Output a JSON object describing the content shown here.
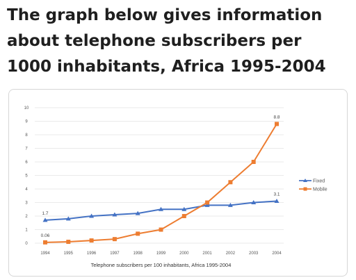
{
  "heading": "The graph below gives information about telephone subscribers per 1000 inhabitants, Africa 1995-2004",
  "chart_data": {
    "type": "line",
    "categories": [
      "1994",
      "1995",
      "1996",
      "1997",
      "1998",
      "1999",
      "2000",
      "2001",
      "2002",
      "2003",
      "2004"
    ],
    "series": [
      {
        "name": "Fixed",
        "color": "#4472c4",
        "marker": "triangle",
        "values": [
          1.7,
          1.8,
          2.0,
          2.1,
          2.2,
          2.5,
          2.5,
          2.8,
          2.8,
          3.0,
          3.1
        ]
      },
      {
        "name": "Mobile",
        "color": "#ed7d31",
        "marker": "square",
        "values": [
          0.06,
          0.1,
          0.2,
          0.3,
          0.7,
          1.0,
          2.0,
          3.0,
          4.5,
          6.0,
          8.8
        ]
      }
    ],
    "y_ticks": [
      "0",
      "1",
      "2",
      "3",
      "4",
      "5",
      "6",
      "7",
      "8",
      "9",
      "10"
    ],
    "ylim": [
      0,
      10
    ],
    "xlabel": "Telephone subscribers per 100 inhabitants, Africa 1995-2004",
    "ylabel": "",
    "grid": true,
    "legend_position": "right",
    "data_labels": [
      {
        "series": "Fixed",
        "index": 0,
        "text": "1.7"
      },
      {
        "series": "Fixed",
        "index": 10,
        "text": "3.1"
      },
      {
        "series": "Mobile",
        "index": 0,
        "text": "0.06"
      },
      {
        "series": "Mobile",
        "index": 10,
        "text": "8.8"
      }
    ]
  }
}
